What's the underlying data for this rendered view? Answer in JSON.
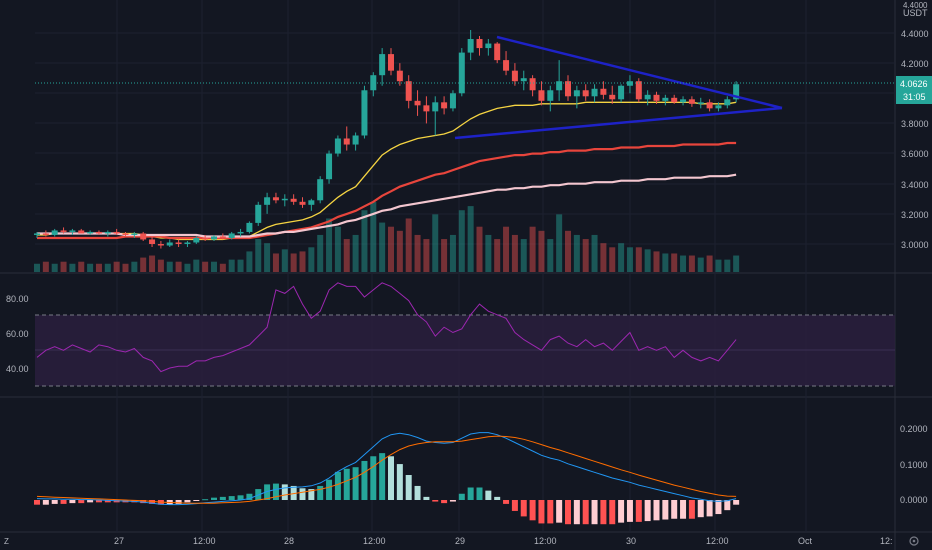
{
  "symbol": {
    "quote": "USDT",
    "base_label": "4.4000"
  },
  "main_pane": {
    "price_axis_labels": [
      "4.4000",
      "4.2000",
      "4.0000",
      "3.8000",
      "3.6000",
      "3.4000",
      "3.2000",
      "3.0000"
    ],
    "last_price": "4.0626",
    "countdown": "31:05"
  },
  "rsi_pane": {
    "axis_labels": [
      "80.00",
      "60.00",
      "40.00"
    ]
  },
  "macd_pane": {
    "axis_labels": [
      "0.2000",
      "0.1000",
      "0.0000"
    ]
  },
  "time_axis": [
    "27",
    "12:00",
    "28",
    "12:00",
    "29",
    "12:00",
    "30",
    "12:00",
    "Oct",
    "12:"
  ],
  "colors": {
    "background": "#131722",
    "up": "#26a69a",
    "down": "#ef5350",
    "trendline": "#1e22c7",
    "ema_fast": "#f5d442",
    "ema_mid": "#e8453c",
    "ema_slow": "#f3c6cf",
    "rsi": "#9c27b0",
    "rsi_band": "#2a1f3d",
    "macd": "#2196f3",
    "signal": "#ff6d00",
    "hist_up_strong": "#26a69a",
    "hist_up_weak": "#b2dfdb",
    "hist_down_strong": "#ff5252",
    "hist_down_weak": "#ffcdd2"
  },
  "chart_data": [
    {
      "type": "candlestick",
      "pane": "price",
      "y_scale": [
        2.85,
        4.48
      ],
      "ohlc": [
        [
          3.06,
          3.08,
          3.04,
          3.07
        ],
        [
          3.07,
          3.09,
          3.05,
          3.06
        ],
        [
          3.06,
          3.1,
          3.05,
          3.09
        ],
        [
          3.09,
          3.11,
          3.07,
          3.08
        ],
        [
          3.08,
          3.1,
          3.06,
          3.09
        ],
        [
          3.09,
          3.1,
          3.07,
          3.07
        ],
        [
          3.07,
          3.09,
          3.06,
          3.08
        ],
        [
          3.08,
          3.09,
          3.06,
          3.07
        ],
        [
          3.07,
          3.09,
          3.05,
          3.08
        ],
        [
          3.08,
          3.1,
          3.06,
          3.07
        ],
        [
          3.07,
          3.08,
          3.05,
          3.06
        ],
        [
          3.06,
          3.08,
          3.04,
          3.07
        ],
        [
          3.07,
          3.08,
          3.02,
          3.03
        ],
        [
          3.03,
          3.05,
          2.98,
          3.0
        ],
        [
          3.0,
          3.02,
          2.97,
          2.99
        ],
        [
          2.99,
          3.03,
          2.98,
          3.01
        ],
        [
          3.01,
          3.03,
          2.98,
          3.0
        ],
        [
          3.0,
          3.02,
          2.98,
          3.01
        ],
        [
          3.01,
          3.05,
          3.0,
          3.04
        ],
        [
          3.04,
          3.06,
          3.02,
          3.03
        ],
        [
          3.03,
          3.06,
          3.02,
          3.05
        ],
        [
          3.05,
          3.07,
          3.03,
          3.04
        ],
        [
          3.04,
          3.08,
          3.03,
          3.07
        ],
        [
          3.07,
          3.1,
          3.05,
          3.08
        ],
        [
          3.08,
          3.15,
          3.07,
          3.14
        ],
        [
          3.14,
          3.28,
          3.12,
          3.26
        ],
        [
          3.26,
          3.34,
          3.2,
          3.31
        ],
        [
          3.31,
          3.34,
          3.27,
          3.29
        ],
        [
          3.29,
          3.33,
          3.25,
          3.3
        ],
        [
          3.3,
          3.33,
          3.26,
          3.28
        ],
        [
          3.28,
          3.31,
          3.24,
          3.26
        ],
        [
          3.26,
          3.3,
          3.22,
          3.29
        ],
        [
          3.29,
          3.45,
          3.27,
          3.43
        ],
        [
          3.43,
          3.62,
          3.4,
          3.6
        ],
        [
          3.6,
          3.72,
          3.58,
          3.7
        ],
        [
          3.7,
          3.78,
          3.62,
          3.66
        ],
        [
          3.66,
          3.74,
          3.62,
          3.72
        ],
        [
          3.72,
          4.05,
          3.7,
          4.02
        ],
        [
          4.02,
          4.14,
          3.98,
          4.12
        ],
        [
          4.12,
          4.3,
          4.05,
          4.26
        ],
        [
          4.26,
          4.3,
          4.12,
          4.15
        ],
        [
          4.15,
          4.2,
          4.05,
          4.08
        ],
        [
          4.08,
          4.12,
          3.9,
          3.95
        ],
        [
          3.95,
          4.02,
          3.85,
          3.92
        ],
        [
          3.92,
          3.98,
          3.8,
          3.88
        ],
        [
          3.88,
          3.98,
          3.72,
          3.94
        ],
        [
          3.94,
          3.98,
          3.86,
          3.9
        ],
        [
          3.9,
          4.02,
          3.88,
          4.0
        ],
        [
          4.0,
          4.3,
          3.98,
          4.27
        ],
        [
          4.27,
          4.42,
          4.22,
          4.36
        ],
        [
          4.36,
          4.38,
          4.25,
          4.3
        ],
        [
          4.3,
          4.36,
          4.25,
          4.33
        ],
        [
          4.33,
          4.34,
          4.2,
          4.22
        ],
        [
          4.22,
          4.28,
          4.12,
          4.15
        ],
        [
          4.15,
          4.2,
          4.05,
          4.08
        ],
        [
          4.08,
          4.15,
          4.02,
          4.1
        ],
        [
          4.1,
          4.12,
          3.98,
          4.02
        ],
        [
          4.02,
          4.08,
          3.92,
          3.95
        ],
        [
          3.95,
          4.05,
          3.88,
          4.02
        ],
        [
          4.02,
          4.22,
          3.95,
          4.08
        ],
        [
          4.08,
          4.12,
          3.95,
          3.98
        ],
        [
          3.98,
          4.05,
          3.9,
          4.02
        ],
        [
          4.02,
          4.06,
          3.95,
          3.98
        ],
        [
          3.98,
          4.06,
          3.94,
          4.03
        ],
        [
          4.03,
          4.08,
          3.96,
          3.99
        ],
        [
          3.99,
          4.05,
          3.93,
          3.96
        ],
        [
          3.96,
          4.06,
          3.94,
          4.05
        ],
        [
          4.05,
          4.12,
          4.0,
          4.08
        ],
        [
          4.08,
          4.1,
          3.94,
          3.96
        ],
        [
          3.96,
          4.02,
          3.92,
          3.99
        ],
        [
          3.99,
          4.01,
          3.93,
          3.95
        ],
        [
          3.95,
          3.99,
          3.92,
          3.97
        ],
        [
          3.97,
          3.99,
          3.93,
          3.94
        ],
        [
          3.94,
          3.98,
          3.92,
          3.96
        ],
        [
          3.96,
          3.98,
          3.91,
          3.93
        ],
        [
          3.93,
          3.97,
          3.9,
          3.94
        ],
        [
          3.94,
          3.96,
          3.88,
          3.9
        ],
        [
          3.9,
          3.94,
          3.88,
          3.92
        ],
        [
          3.92,
          3.98,
          3.9,
          3.96
        ],
        [
          3.96,
          4.08,
          3.94,
          4.06
        ]
      ]
    },
    {
      "type": "line",
      "pane": "price",
      "series": [
        {
          "key": "ema_fast",
          "values": [
            3.06,
            3.06,
            3.07,
            3.07,
            3.07,
            3.07,
            3.07,
            3.07,
            3.07,
            3.07,
            3.07,
            3.07,
            3.06,
            3.05,
            3.04,
            3.04,
            3.03,
            3.03,
            3.03,
            3.03,
            3.03,
            3.03,
            3.04,
            3.04,
            3.05,
            3.08,
            3.11,
            3.13,
            3.14,
            3.15,
            3.16,
            3.18,
            3.21,
            3.26,
            3.31,
            3.35,
            3.38,
            3.45,
            3.52,
            3.59,
            3.63,
            3.66,
            3.68,
            3.7,
            3.71,
            3.72,
            3.73,
            3.75,
            3.79,
            3.83,
            3.86,
            3.88,
            3.9,
            3.91,
            3.92,
            3.92,
            3.92,
            3.93,
            3.93,
            3.93,
            3.93,
            3.93,
            3.94,
            3.94,
            3.94,
            3.94,
            3.94,
            3.94,
            3.94,
            3.94,
            3.94,
            3.94,
            3.94,
            3.94,
            3.94,
            3.93,
            3.93,
            3.93,
            3.93,
            3.94
          ]
        },
        {
          "key": "ema_mid",
          "values": [
            3.04,
            3.04,
            3.04,
            3.04,
            3.04,
            3.04,
            3.04,
            3.04,
            3.04,
            3.04,
            3.05,
            3.05,
            3.05,
            3.05,
            3.05,
            3.04,
            3.04,
            3.04,
            3.04,
            3.04,
            3.04,
            3.04,
            3.04,
            3.04,
            3.04,
            3.05,
            3.06,
            3.07,
            3.08,
            3.09,
            3.1,
            3.11,
            3.13,
            3.15,
            3.18,
            3.2,
            3.22,
            3.25,
            3.28,
            3.32,
            3.35,
            3.38,
            3.4,
            3.42,
            3.44,
            3.46,
            3.47,
            3.49,
            3.51,
            3.53,
            3.55,
            3.56,
            3.57,
            3.58,
            3.59,
            3.59,
            3.6,
            3.6,
            3.61,
            3.61,
            3.62,
            3.62,
            3.62,
            3.63,
            3.63,
            3.63,
            3.64,
            3.64,
            3.64,
            3.65,
            3.65,
            3.65,
            3.65,
            3.66,
            3.66,
            3.66,
            3.66,
            3.66,
            3.67,
            3.67
          ]
        },
        {
          "key": "ema_slow",
          "values": [
            3.07,
            3.07,
            3.07,
            3.07,
            3.07,
            3.07,
            3.07,
            3.07,
            3.07,
            3.07,
            3.06,
            3.06,
            3.06,
            3.06,
            3.06,
            3.06,
            3.06,
            3.06,
            3.06,
            3.05,
            3.05,
            3.05,
            3.05,
            3.05,
            3.05,
            3.06,
            3.07,
            3.07,
            3.08,
            3.08,
            3.09,
            3.1,
            3.11,
            3.12,
            3.13,
            3.15,
            3.16,
            3.18,
            3.2,
            3.22,
            3.23,
            3.25,
            3.26,
            3.27,
            3.28,
            3.29,
            3.3,
            3.31,
            3.32,
            3.33,
            3.34,
            3.35,
            3.36,
            3.36,
            3.37,
            3.37,
            3.38,
            3.38,
            3.39,
            3.39,
            3.4,
            3.4,
            3.4,
            3.41,
            3.41,
            3.41,
            3.42,
            3.42,
            3.42,
            3.43,
            3.43,
            3.43,
            3.44,
            3.44,
            3.44,
            3.44,
            3.45,
            3.45,
            3.45,
            3.46
          ]
        }
      ]
    },
    {
      "type": "bar",
      "pane": "volume",
      "values": [
        4,
        5,
        4,
        5,
        4,
        5,
        4,
        4,
        4,
        5,
        4,
        5,
        7,
        8,
        6,
        5,
        5,
        4,
        6,
        5,
        5,
        4,
        6,
        6,
        10,
        16,
        14,
        9,
        11,
        9,
        10,
        12,
        18,
        26,
        22,
        16,
        18,
        30,
        34,
        24,
        22,
        20,
        26,
        18,
        16,
        28,
        16,
        18,
        30,
        32,
        22,
        18,
        16,
        22,
        18,
        16,
        22,
        20,
        16,
        28,
        20,
        18,
        16,
        18,
        14,
        12,
        14,
        12,
        12,
        11,
        10,
        9,
        9,
        8,
        8,
        7,
        8,
        6,
        6,
        8
      ]
    },
    {
      "type": "line",
      "pane": "rsi",
      "y_scale": [
        28,
        92
      ],
      "series": [
        {
          "key": "rsi",
          "values": [
            46,
            50,
            52,
            50,
            53,
            51,
            49,
            53,
            52,
            50,
            49,
            51,
            46,
            44,
            38,
            40,
            41,
            41,
            44,
            44,
            46,
            47,
            49,
            51,
            53,
            58,
            63,
            84,
            82,
            86,
            76,
            68,
            72,
            84,
            88,
            86,
            86,
            80,
            84,
            88,
            86,
            82,
            78,
            70,
            66,
            58,
            63,
            60,
            62,
            70,
            76,
            72,
            70,
            68,
            60,
            56,
            53,
            50,
            56,
            58,
            54,
            52,
            56,
            52,
            54,
            50,
            55,
            60,
            50,
            52,
            50,
            52,
            46,
            50,
            46,
            44,
            46,
            44,
            50,
            56
          ]
        }
      ]
    },
    {
      "type": "line",
      "pane": "macd",
      "y_scale": [
        -0.06,
        0.24
      ],
      "series": [
        {
          "key": "macd",
          "values": [
            0.004,
            0.003,
            0.003,
            0.002,
            0.002,
            0.001,
            0.001,
            0.0,
            -0.001,
            -0.002,
            -0.003,
            -0.004,
            -0.006,
            -0.009,
            -0.012,
            -0.013,
            -0.013,
            -0.012,
            -0.01,
            -0.008,
            -0.006,
            -0.004,
            -0.002,
            0.0,
            0.004,
            0.014,
            0.024,
            0.03,
            0.034,
            0.036,
            0.037,
            0.04,
            0.048,
            0.062,
            0.08,
            0.094,
            0.106,
            0.128,
            0.15,
            0.172,
            0.184,
            0.188,
            0.184,
            0.176,
            0.166,
            0.162,
            0.16,
            0.162,
            0.174,
            0.186,
            0.19,
            0.19,
            0.184,
            0.174,
            0.162,
            0.15,
            0.138,
            0.126,
            0.118,
            0.112,
            0.102,
            0.094,
            0.086,
            0.078,
            0.07,
            0.062,
            0.056,
            0.05,
            0.042,
            0.036,
            0.03,
            0.024,
            0.018,
            0.012,
            0.006,
            0.002,
            -0.002,
            -0.004,
            -0.002,
            0.004
          ]
        },
        {
          "key": "signal",
          "values": [
            0.01,
            0.009,
            0.008,
            0.007,
            0.006,
            0.005,
            0.004,
            0.003,
            0.002,
            0.001,
            0.0,
            -0.001,
            -0.002,
            -0.004,
            -0.006,
            -0.007,
            -0.008,
            -0.009,
            -0.009,
            -0.009,
            -0.009,
            -0.008,
            -0.007,
            -0.006,
            -0.004,
            0.0,
            0.004,
            0.009,
            0.014,
            0.018,
            0.022,
            0.026,
            0.03,
            0.036,
            0.044,
            0.054,
            0.064,
            0.078,
            0.094,
            0.112,
            0.128,
            0.142,
            0.152,
            0.158,
            0.162,
            0.164,
            0.164,
            0.164,
            0.166,
            0.17,
            0.174,
            0.178,
            0.18,
            0.179,
            0.176,
            0.171,
            0.164,
            0.156,
            0.148,
            0.141,
            0.133,
            0.125,
            0.117,
            0.109,
            0.101,
            0.093,
            0.085,
            0.078,
            0.07,
            0.063,
            0.056,
            0.049,
            0.042,
            0.036,
            0.03,
            0.024,
            0.019,
            0.014,
            0.011,
            0.01
          ]
        }
      ]
    }
  ]
}
